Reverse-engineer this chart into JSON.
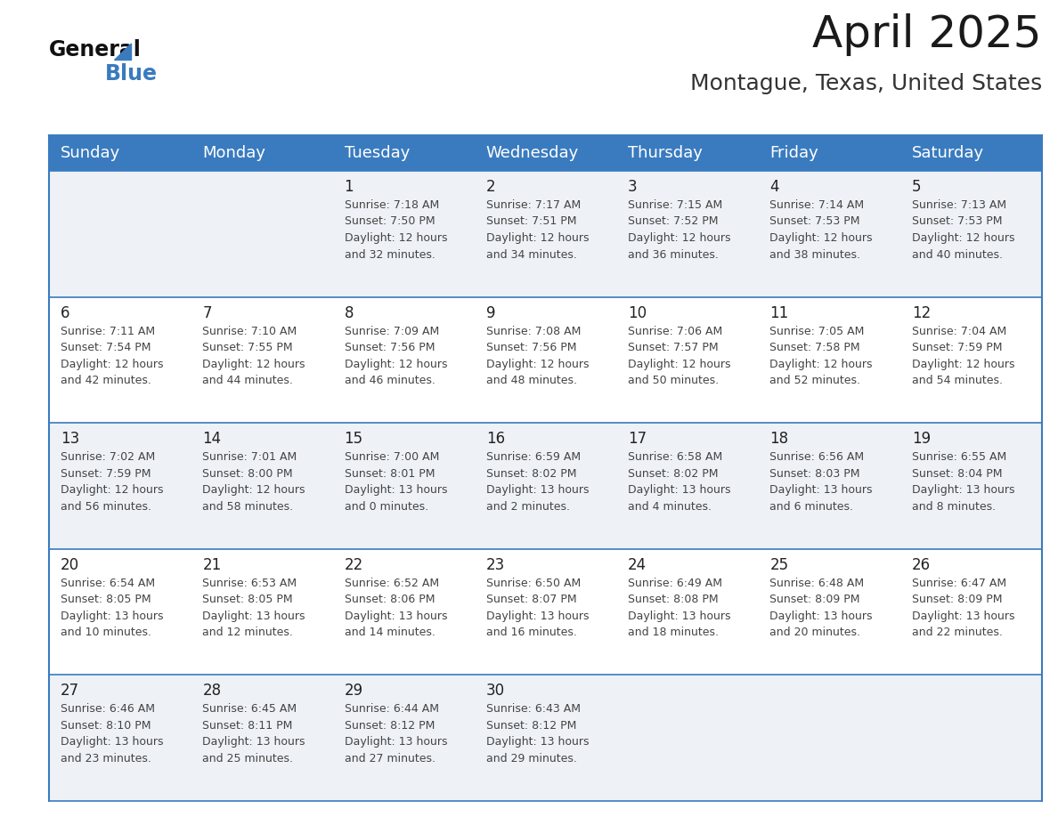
{
  "title": "April 2025",
  "subtitle": "Montague, Texas, United States",
  "header_bg_color": "#3a7bbf",
  "header_text_color": "#ffffff",
  "row0_bg": "#eef2f7",
  "row1_bg": "#ffffff",
  "day_names": [
    "Sunday",
    "Monday",
    "Tuesday",
    "Wednesday",
    "Thursday",
    "Friday",
    "Saturday"
  ],
  "calendar_data": [
    [
      {
        "day": "",
        "sunrise": "",
        "sunset": "",
        "daylight": ""
      },
      {
        "day": "",
        "sunrise": "",
        "sunset": "",
        "daylight": ""
      },
      {
        "day": "1",
        "sunrise": "7:18 AM",
        "sunset": "7:50 PM",
        "daylight": "12 hours\nand 32 minutes."
      },
      {
        "day": "2",
        "sunrise": "7:17 AM",
        "sunset": "7:51 PM",
        "daylight": "12 hours\nand 34 minutes."
      },
      {
        "day": "3",
        "sunrise": "7:15 AM",
        "sunset": "7:52 PM",
        "daylight": "12 hours\nand 36 minutes."
      },
      {
        "day": "4",
        "sunrise": "7:14 AM",
        "sunset": "7:53 PM",
        "daylight": "12 hours\nand 38 minutes."
      },
      {
        "day": "5",
        "sunrise": "7:13 AM",
        "sunset": "7:53 PM",
        "daylight": "12 hours\nand 40 minutes."
      }
    ],
    [
      {
        "day": "6",
        "sunrise": "7:11 AM",
        "sunset": "7:54 PM",
        "daylight": "12 hours\nand 42 minutes."
      },
      {
        "day": "7",
        "sunrise": "7:10 AM",
        "sunset": "7:55 PM",
        "daylight": "12 hours\nand 44 minutes."
      },
      {
        "day": "8",
        "sunrise": "7:09 AM",
        "sunset": "7:56 PM",
        "daylight": "12 hours\nand 46 minutes."
      },
      {
        "day": "9",
        "sunrise": "7:08 AM",
        "sunset": "7:56 PM",
        "daylight": "12 hours\nand 48 minutes."
      },
      {
        "day": "10",
        "sunrise": "7:06 AM",
        "sunset": "7:57 PM",
        "daylight": "12 hours\nand 50 minutes."
      },
      {
        "day": "11",
        "sunrise": "7:05 AM",
        "sunset": "7:58 PM",
        "daylight": "12 hours\nand 52 minutes."
      },
      {
        "day": "12",
        "sunrise": "7:04 AM",
        "sunset": "7:59 PM",
        "daylight": "12 hours\nand 54 minutes."
      }
    ],
    [
      {
        "day": "13",
        "sunrise": "7:02 AM",
        "sunset": "7:59 PM",
        "daylight": "12 hours\nand 56 minutes."
      },
      {
        "day": "14",
        "sunrise": "7:01 AM",
        "sunset": "8:00 PM",
        "daylight": "12 hours\nand 58 minutes."
      },
      {
        "day": "15",
        "sunrise": "7:00 AM",
        "sunset": "8:01 PM",
        "daylight": "13 hours\nand 0 minutes."
      },
      {
        "day": "16",
        "sunrise": "6:59 AM",
        "sunset": "8:02 PM",
        "daylight": "13 hours\nand 2 minutes."
      },
      {
        "day": "17",
        "sunrise": "6:58 AM",
        "sunset": "8:02 PM",
        "daylight": "13 hours\nand 4 minutes."
      },
      {
        "day": "18",
        "sunrise": "6:56 AM",
        "sunset": "8:03 PM",
        "daylight": "13 hours\nand 6 minutes."
      },
      {
        "day": "19",
        "sunrise": "6:55 AM",
        "sunset": "8:04 PM",
        "daylight": "13 hours\nand 8 minutes."
      }
    ],
    [
      {
        "day": "20",
        "sunrise": "6:54 AM",
        "sunset": "8:05 PM",
        "daylight": "13 hours\nand 10 minutes."
      },
      {
        "day": "21",
        "sunrise": "6:53 AM",
        "sunset": "8:05 PM",
        "daylight": "13 hours\nand 12 minutes."
      },
      {
        "day": "22",
        "sunrise": "6:52 AM",
        "sunset": "8:06 PM",
        "daylight": "13 hours\nand 14 minutes."
      },
      {
        "day": "23",
        "sunrise": "6:50 AM",
        "sunset": "8:07 PM",
        "daylight": "13 hours\nand 16 minutes."
      },
      {
        "day": "24",
        "sunrise": "6:49 AM",
        "sunset": "8:08 PM",
        "daylight": "13 hours\nand 18 minutes."
      },
      {
        "day": "25",
        "sunrise": "6:48 AM",
        "sunset": "8:09 PM",
        "daylight": "13 hours\nand 20 minutes."
      },
      {
        "day": "26",
        "sunrise": "6:47 AM",
        "sunset": "8:09 PM",
        "daylight": "13 hours\nand 22 minutes."
      }
    ],
    [
      {
        "day": "27",
        "sunrise": "6:46 AM",
        "sunset": "8:10 PM",
        "daylight": "13 hours\nand 23 minutes."
      },
      {
        "day": "28",
        "sunrise": "6:45 AM",
        "sunset": "8:11 PM",
        "daylight": "13 hours\nand 25 minutes."
      },
      {
        "day": "29",
        "sunrise": "6:44 AM",
        "sunset": "8:12 PM",
        "daylight": "13 hours\nand 27 minutes."
      },
      {
        "day": "30",
        "sunrise": "6:43 AM",
        "sunset": "8:12 PM",
        "daylight": "13 hours\nand 29 minutes."
      },
      {
        "day": "",
        "sunrise": "",
        "sunset": "",
        "daylight": ""
      },
      {
        "day": "",
        "sunrise": "",
        "sunset": "",
        "daylight": ""
      },
      {
        "day": "",
        "sunrise": "",
        "sunset": "",
        "daylight": ""
      }
    ]
  ],
  "border_color": "#3a7bbf",
  "row_divider_color": "#3a7bbf",
  "cell_text_color": "#444444",
  "day_num_color": "#222222",
  "bg_color": "#ffffff",
  "title_fontsize": 36,
  "subtitle_fontsize": 18,
  "day_header_fontsize": 13,
  "day_num_fontsize": 12,
  "cell_fontsize": 9
}
